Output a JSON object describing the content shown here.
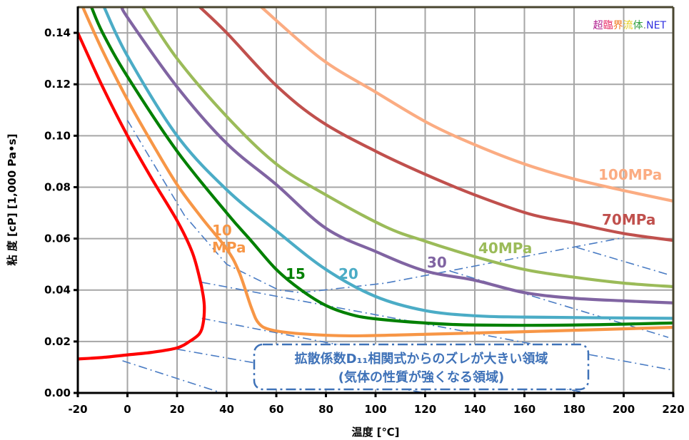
{
  "chart_data": {
    "type": "line",
    "title": "",
    "xlabel": "温度 [℃]",
    "ylabel": "粘 度 [cP] [1,000 Pa•s]",
    "xlim": [
      -20,
      220
    ],
    "ylim": [
      0,
      0.15
    ],
    "x_ticks": [
      -20,
      0,
      20,
      40,
      60,
      80,
      100,
      120,
      140,
      160,
      180,
      200,
      220
    ],
    "y_ticks": [
      "0.00",
      "0.02",
      "0.04",
      "0.06",
      "0.08",
      "0.10",
      "0.12",
      "0.14"
    ],
    "grid": true,
    "legend": "none (inline labels)",
    "series": [
      {
        "label": "",
        "color": "#ff0000",
        "points": [
          [
            -20,
            0.14
          ],
          [
            -10,
            0.119
          ],
          [
            0,
            0.1
          ],
          [
            10,
            0.083
          ],
          [
            20,
            0.067
          ],
          [
            26,
            0.055
          ],
          [
            29,
            0.045
          ],
          [
            30.5,
            0.038
          ],
          [
            31,
            0.033
          ],
          [
            30.5,
            0.027
          ],
          [
            29,
            0.023
          ],
          [
            25,
            0.02
          ],
          [
            20,
            0.0175
          ],
          [
            10,
            0.0158
          ],
          [
            0,
            0.0148
          ],
          [
            -10,
            0.0138
          ],
          [
            -20,
            0.0132
          ]
        ]
      },
      {
        "label": "10 MPa",
        "color": "#f79646",
        "points": [
          [
            -18,
            0.15
          ],
          [
            -10,
            0.133
          ],
          [
            0,
            0.114
          ],
          [
            10,
            0.097
          ],
          [
            20,
            0.081
          ],
          [
            30,
            0.068
          ],
          [
            40,
            0.056
          ],
          [
            45,
            0.047
          ],
          [
            50,
            0.033
          ],
          [
            53,
            0.027
          ],
          [
            58,
            0.0245
          ],
          [
            70,
            0.023
          ],
          [
            90,
            0.0222
          ],
          [
            120,
            0.0228
          ],
          [
            160,
            0.0238
          ],
          [
            220,
            0.0255
          ]
        ]
      },
      {
        "label": "15",
        "color": "#008000",
        "points": [
          [
            -14.5,
            0.15
          ],
          [
            -10,
            0.14
          ],
          [
            0,
            0.123
          ],
          [
            20,
            0.094
          ],
          [
            40,
            0.07
          ],
          [
            50,
            0.059
          ],
          [
            60,
            0.048
          ],
          [
            70,
            0.04
          ],
          [
            80,
            0.034
          ],
          [
            90,
            0.0305
          ],
          [
            100,
            0.0288
          ],
          [
            120,
            0.0272
          ],
          [
            140,
            0.0264
          ],
          [
            180,
            0.0264
          ],
          [
            220,
            0.0272
          ]
        ]
      },
      {
        "label": "20",
        "color": "#4bacc6",
        "points": [
          [
            -9.4,
            0.15
          ],
          [
            0,
            0.131
          ],
          [
            20,
            0.1
          ],
          [
            40,
            0.079
          ],
          [
            60,
            0.063
          ],
          [
            80,
            0.048
          ],
          [
            100,
            0.0375
          ],
          [
            120,
            0.032
          ],
          [
            140,
            0.03
          ],
          [
            160,
            0.0295
          ],
          [
            220,
            0.029
          ]
        ]
      },
      {
        "label": "30",
        "color": "#8064a2",
        "points": [
          [
            -1.9,
            0.15
          ],
          [
            0,
            0.146
          ],
          [
            20,
            0.119
          ],
          [
            40,
            0.097
          ],
          [
            60,
            0.081
          ],
          [
            80,
            0.064
          ],
          [
            100,
            0.055
          ],
          [
            120,
            0.0474
          ],
          [
            140,
            0.0438
          ],
          [
            160,
            0.039
          ],
          [
            180,
            0.0368
          ],
          [
            200,
            0.0358
          ],
          [
            220,
            0.035
          ]
        ]
      },
      {
        "label": "40MPa",
        "color": "#9bbb59",
        "points": [
          [
            6.2,
            0.15
          ],
          [
            20,
            0.13
          ],
          [
            40,
            0.1075
          ],
          [
            60,
            0.089
          ],
          [
            80,
            0.077
          ],
          [
            104,
            0.0646
          ],
          [
            120,
            0.059
          ],
          [
            140,
            0.053
          ],
          [
            160,
            0.048
          ],
          [
            180,
            0.045
          ],
          [
            200,
            0.0427
          ],
          [
            220,
            0.0413
          ]
        ]
      },
      {
        "label": "70MPa",
        "color": "#c0504d",
        "points": [
          [
            29.2,
            0.15
          ],
          [
            40,
            0.14
          ],
          [
            60,
            0.1195
          ],
          [
            78,
            0.1056
          ],
          [
            100,
            0.094
          ],
          [
            120,
            0.085
          ],
          [
            140,
            0.077
          ],
          [
            162,
            0.0696
          ],
          [
            180,
            0.066
          ],
          [
            200,
            0.062
          ],
          [
            220,
            0.0593
          ]
        ]
      },
      {
        "label": "100MPa",
        "color": "#fbac82",
        "points": [
          [
            54,
            0.15
          ],
          [
            78,
            0.13
          ],
          [
            100,
            0.117
          ],
          [
            121,
            0.105
          ],
          [
            140,
            0.0965
          ],
          [
            160,
            0.089
          ],
          [
            180,
            0.0832
          ],
          [
            200,
            0.0787
          ],
          [
            220,
            0.0746
          ]
        ]
      }
    ],
    "guide_lines": {
      "color": "#4a7cc4",
      "style": "dash-dot",
      "lines": [
        [
          [
            0,
            0.106
          ],
          [
            23,
            0.069
          ],
          [
            40,
            0.05
          ],
          [
            61,
            0.04
          ],
          [
            70,
            0.039
          ],
          [
            104,
            0.0427
          ],
          [
            200,
            0.0604
          ]
        ],
        [
          [
            30,
            0.043
          ],
          [
            219,
            0.009
          ]
        ],
        [
          [
            30,
            0.029
          ],
          [
            185,
            0.0
          ]
        ],
        [
          [
            20,
            0.017
          ],
          [
            120,
            0.0
          ]
        ],
        [
          [
            -2,
            0.0125
          ],
          [
            38,
            0.0
          ]
        ],
        [
          [
            130,
            0.0474
          ],
          [
            218,
            0.0216
          ]
        ],
        [
          [
            181,
            0.0566
          ],
          [
            218,
            0.046
          ]
        ]
      ]
    },
    "annotation": {
      "line1": "拡散係数D₁₁相関式からのズレが大きい領域",
      "line2": "(気体の性質が強くなる領域)",
      "color": "#3f72b8"
    }
  },
  "watermark": {
    "parts": [
      {
        "text": "超",
        "color": "#b0208f"
      },
      {
        "text": "臨",
        "color": "#e8306a"
      },
      {
        "text": "界",
        "color": "#f07820"
      },
      {
        "text": "流",
        "color": "#e8d020"
      },
      {
        "text": "体",
        "color": "#30a040"
      },
      {
        "text": ".",
        "color": "#888888"
      },
      {
        "text": "NET",
        "color": "#3030e0"
      }
    ]
  }
}
